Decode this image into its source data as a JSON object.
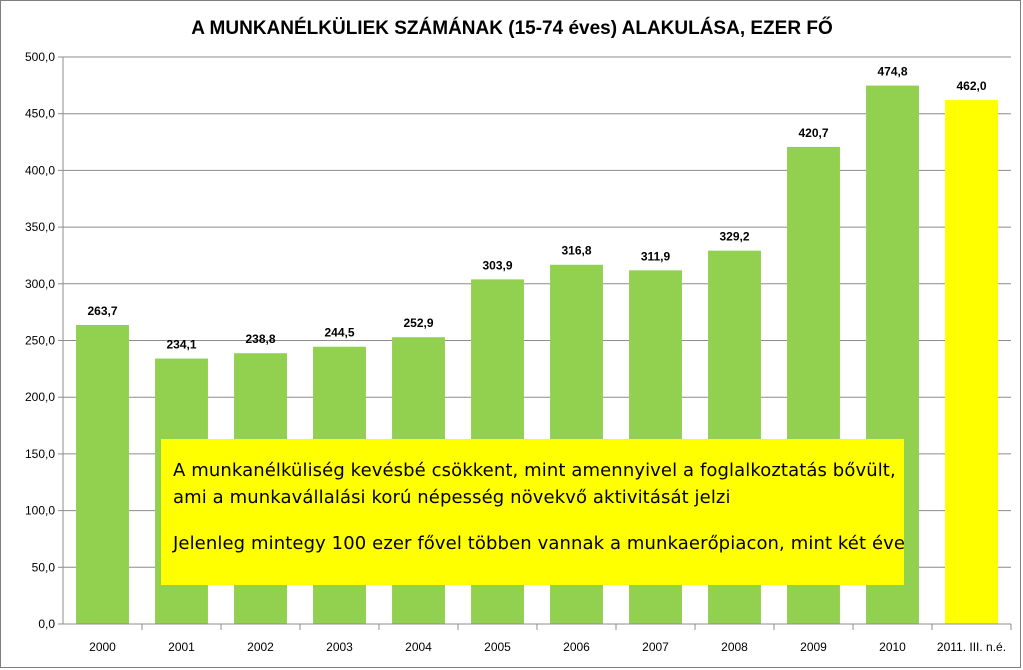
{
  "chart_data": {
    "type": "bar",
    "title": "A MUNKANÉLKÜLIEK SZÁMÁNAK (15-74 éves) ALAKULÁSA, EZER FŐ",
    "categories": [
      "2000",
      "2001",
      "2002",
      "2003",
      "2004",
      "2005",
      "2006",
      "2007",
      "2008",
      "2009",
      "2010",
      "2011. III. n.é."
    ],
    "values": [
      263.7,
      234.1,
      238.8,
      244.5,
      252.9,
      303.9,
      316.8,
      311.9,
      329.2,
      420.7,
      474.8,
      462.0
    ],
    "value_labels": [
      "263,7",
      "234,1",
      "238,8",
      "244,5",
      "252,9",
      "303,9",
      "316,8",
      "311,9",
      "329,2",
      "420,7",
      "474,8",
      "462,0"
    ],
    "bar_colors": [
      "#92d050",
      "#92d050",
      "#92d050",
      "#92d050",
      "#92d050",
      "#92d050",
      "#92d050",
      "#92d050",
      "#92d050",
      "#92d050",
      "#92d050",
      "#ffff00"
    ],
    "ylim": [
      0,
      500
    ],
    "yticks": [
      0,
      50,
      100,
      150,
      200,
      250,
      300,
      350,
      400,
      450,
      500
    ],
    "ytick_labels": [
      "0,0",
      "50,0",
      "100,0",
      "150,0",
      "200,0",
      "250,0",
      "300,0",
      "350,0",
      "400,0",
      "450,0",
      "500,0"
    ],
    "xlabel": "",
    "ylabel": "",
    "grid": true,
    "legend": "none"
  },
  "annotation": {
    "line1": "A munkanélküliség kevésbé csökkent, mint amennyivel a foglalkoztatás bővült,",
    "line2": "ami a munkavállalási korú népesség növekvő aktivitását jelzi",
    "line3": "Jelenleg mintegy 100 ezer fővel többen vannak a munkaerőpiacon, mint két éve",
    "background": "#ffff00"
  }
}
